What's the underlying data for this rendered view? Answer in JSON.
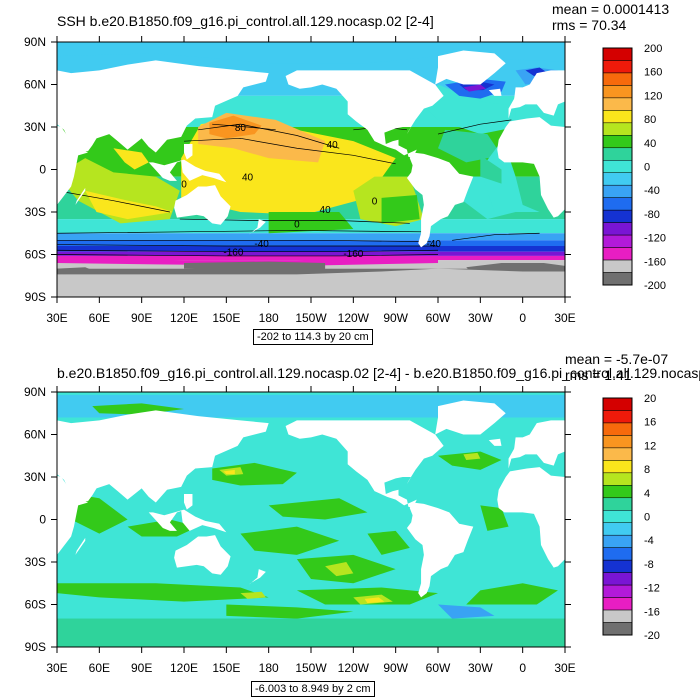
{
  "chart_data": [
    {
      "type": "heatmap",
      "title": "SSH b.e20.B1850.f09_g16.pi_control.all.129.nocasp.02 [2-4]",
      "stats": {
        "mean": "mean = 0.0001413",
        "rms": "rms = 70.34"
      },
      "range_note": "-202 to 114.3 by 20 cm",
      "x_ticks": [
        "30E",
        "60E",
        "90E",
        "120E",
        "150E",
        "180",
        "150W",
        "120W",
        "90W",
        "60W",
        "30W",
        "0",
        "30E"
      ],
      "y_ticks": [
        "90N",
        "60N",
        "30N",
        "0",
        "30S",
        "60S",
        "90S"
      ],
      "colorbar_labels": [
        "200",
        "160",
        "120",
        "80",
        "40",
        "0",
        "-40",
        "-80",
        "-120",
        "-160",
        "-200"
      ],
      "colors": [
        "#d40000",
        "#ef1a0a",
        "#f76a0c",
        "#f99520",
        "#fbb94a",
        "#fae61c",
        "#b6e51f",
        "#33c91a",
        "#2fd39b",
        "#3fe5d6",
        "#41cbf1",
        "#39a3f4",
        "#1f6cf0",
        "#1532d2",
        "#7a15d4",
        "#b21ad9",
        "#e81ec3",
        "#c8c8c8",
        "#707070"
      ],
      "contour_labels": [
        "80",
        "40",
        "40",
        "40",
        "0",
        "0",
        "0",
        "-40",
        "-160",
        "-160",
        "-40"
      ]
    },
    {
      "type": "heatmap",
      "title": "b.e20.B1850.f09_g16.pi_control.all.129.nocasp.02 [2-4] - b.e20.B1850.f09_g16.pi_control.all.129.nocasp",
      "stats": {
        "mean": "mean = -5.7e-07",
        "rms": "rms = 1.41"
      },
      "range_note": "-6.003 to 8.949 by 2 cm",
      "x_ticks": [
        "30E",
        "60E",
        "90E",
        "120E",
        "150E",
        "180",
        "150W",
        "120W",
        "90W",
        "60W",
        "30W",
        "0",
        "30E"
      ],
      "y_ticks": [
        "90N",
        "60N",
        "30N",
        "0",
        "30S",
        "60S",
        "90S"
      ],
      "colorbar_labels": [
        "20",
        "16",
        "12",
        "8",
        "4",
        "0",
        "-4",
        "-8",
        "-12",
        "-16",
        "-20"
      ],
      "colors": [
        "#d40000",
        "#ef1a0a",
        "#f76a0c",
        "#f99520",
        "#fbb94a",
        "#fae61c",
        "#b6e51f",
        "#33c91a",
        "#2fd39b",
        "#3fe5d6",
        "#41cbf1",
        "#39a3f4",
        "#1f6cf0",
        "#1532d2",
        "#7a15d4",
        "#b21ad9",
        "#e81ec3",
        "#c8c8c8",
        "#707070"
      ]
    }
  ]
}
